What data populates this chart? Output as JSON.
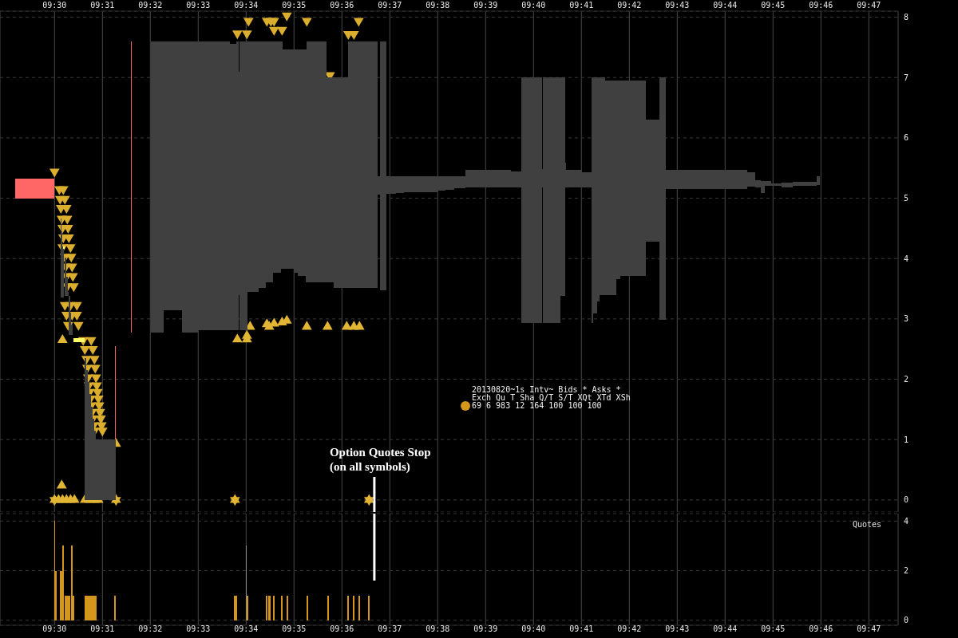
{
  "chart_data": [
    {
      "type": "bar",
      "xlim": [
        9.48103,
        9.79353
      ],
      "xticks": [
        {
          "value": 9.5,
          "label": "09:30"
        },
        {
          "value": 9.51667,
          "label": "09:31"
        },
        {
          "value": 9.53333,
          "label": "09:32"
        },
        {
          "value": 9.55,
          "label": "09:33"
        },
        {
          "value": 9.56667,
          "label": "09:34"
        },
        {
          "value": 9.58333,
          "label": "09:35"
        },
        {
          "value": 9.6,
          "label": "09:36"
        },
        {
          "value": 9.61667,
          "label": "09:37"
        },
        {
          "value": 9.63333,
          "label": "09:38"
        },
        {
          "value": 9.65,
          "label": "09:39"
        },
        {
          "value": 9.66667,
          "label": "09:40"
        },
        {
          "value": 9.68333,
          "label": "09:41"
        },
        {
          "value": 9.7,
          "label": "09:42"
        },
        {
          "value": 9.71667,
          "label": "09:43"
        },
        {
          "value": 9.73333,
          "label": "09:44"
        },
        {
          "value": 9.75,
          "label": "09:45"
        },
        {
          "value": 9.76667,
          "label": "09:46"
        },
        {
          "value": 9.78333,
          "label": "09:47"
        }
      ],
      "ylim": [
        -0.2,
        8.1
      ],
      "yticks": [
        0,
        1,
        2,
        3,
        4,
        5,
        6,
        7,
        8
      ],
      "grid": true,
      "series": [
        {
          "color": "#404040",
          "x": [
            9.50236,
            9.50264,
            9.50306,
            9.50333,
            9.50389,
            9.50444,
            9.50486,
            9.50528,
            9.50569,
            9.50611,
            9.50639,
            9.51083,
            9.51139,
            9.51194,
            9.5125,
            9.51306,
            9.51361,
            9.51417,
            9.51792,
            9.52139,
            9.53361,
            9.53583,
            9.54125,
            9.54722,
            9.55556,
            9.56222,
            9.56375,
            9.56431,
            9.56583,
            9.56917,
            9.57236,
            9.57486,
            9.5775,
            9.57917,
            9.58139,
            9.58403,
            9.58611,
            9.58764,
            9.59125,
            9.59597,
            9.59972,
            9.60736,
            9.61292,
            9.61444,
            9.61722,
            9.62028,
            9.6275,
            9.63472,
            9.63764,
            9.64111,
            9.65097,
            9.66069,
            9.66611,
            9.66986,
            9.67306,
            9.67694,
            9.67792,
            9.68083,
            9.68528,
            9.68722,
            9.68806,
            9.68917,
            9.69069,
            9.69361,
            9.69625,
            9.70139,
            9.70819,
            9.71167,
            9.72694,
            9.7425,
            9.74486,
            9.74653,
            9.74833,
            9.75125,
            9.755,
            9.76111,
            9.76583
          ],
          "base": [
            3.36,
            3.36,
            3.36,
            null,
            3.38,
            3.38,
            3.38,
            2.74,
            2.74,
            2.74,
            null,
            0,
            0,
            0,
            0,
            0,
            0,
            0,
            0,
            null,
            null,
            2.77,
            3.15,
            2.77,
            2.81,
            2.81,
            2.81,
            3.39,
            2.81,
            3.45,
            3.52,
            3.6,
            3.76,
            3.83,
            3.83,
            3.76,
            3.71,
            3.6,
            3.6,
            3.6,
            3.51,
            3.51,
            5.06,
            3.47,
            5.07,
            5.09,
            5.1,
            5.12,
            5.14,
            5.17,
            5.18,
            5.18,
            2.93,
            5.18,
            2.93,
            3.38,
            5.18,
            5.18,
            5.18,
            2.93,
            3.09,
            3.29,
            3.4,
            3.4,
            3.66,
            3.71,
            4.28,
            2.98,
            5.15,
            5.19,
            5.18,
            5.09,
            5.2,
            5.2,
            5.18,
            5.2,
            5.22
          ],
          "values": [
            1.31,
            1.09,
            0.84,
            null,
            0.64,
            0.32,
            0.07,
            0.64,
            0.36,
            0.16,
            null,
            2.35,
            2.15,
            1.95,
            1.75,
            1.55,
            1.35,
            1.15,
            1.0,
            null,
            null,
            4.83,
            4.45,
            4.83,
            4.79,
            4.75,
            4.79,
            3.71,
            4.79,
            4.15,
            4.08,
            4.0,
            3.84,
            3.77,
            3.64,
            3.71,
            3.76,
            3.87,
            4.0,
            3.4,
            3.49,
            4.09,
            0.31,
            4.13,
            0.29,
            0.27,
            0.26,
            0.24,
            0.22,
            0.19,
            0.29,
            0.26,
            4.07,
            0.3,
            4.07,
            3.62,
            0.41,
            0.29,
            0.25,
            4.07,
            3.91,
            3.71,
            3.6,
            3.55,
            3.29,
            3.24,
            2.02,
            4.02,
            0.32,
            0.24,
            0.12,
            0.2,
            0.08,
            0.05,
            0.08,
            0.07,
            0.15
          ]
        },
        {
          "color": "#ff6666",
          "x": [
            9.49319,
            9.5,
            9.52114,
            9.52128,
            9.52656,
            9.52669
          ],
          "base": [
            5.0,
            null,
            1.0,
            null,
            null,
            2.77
          ],
          "values": [
            0.33,
            null,
            1.55,
            null,
            null,
            4.83
          ]
        },
        {
          "color": "#ffff66",
          "x": [
            9.50333,
            9.50361,
            9.50667,
            9.50861
          ],
          "base": [
            4.16,
            null,
            null,
            2.62
          ],
          "values": [
            0.04,
            null,
            null,
            0.06
          ]
        },
        {
          "type": "scatter",
          "color": "#dcae2d",
          "marker": "triangle",
          "x": [
            9.5,
            9.5,
            9.50167,
            9.50306,
            9.50194,
            9.50361,
            9.50222,
            9.50417,
            9.5025,
            9.50444,
            9.50278,
            9.50472,
            9.50306,
            9.505,
            9.50278,
            9.50556,
            9.50361,
            9.50583,
            9.50389,
            9.50611,
            9.50417,
            9.50639,
            9.50444,
            9.50667,
            9.50361,
            9.50556,
            9.50778,
            9.50417,
            9.50611,
            9.50778,
            9.50472,
            9.50833,
            9.51,
            9.51278,
            9.51056,
            9.51333,
            9.51111,
            9.51389,
            9.51139,
            9.51417,
            9.51167,
            9.51444,
            9.51194,
            9.51472,
            9.51222,
            9.515,
            9.5125,
            9.51528,
            9.51278,
            9.51556,
            9.51306,
            9.51583,
            9.51333,
            9.51611,
            9.51361,
            9.51639,
            9.51389,
            9.51667,
            9.52139,
            9.56278,
            9.60944,
            9.56361,
            9.56694,
            9.5675,
            9.57389,
            9.57528,
            9.57639,
            9.57639,
            9.57917,
            9.58083,
            9.58778,
            9.59583,
            9.60222,
            9.60417,
            9.60583
          ],
          "values": [
            5.44,
            0,
            5.15,
            5.15,
            4.99,
            4.99,
            4.84,
            4.84,
            4.66,
            4.66,
            4.51,
            4.51,
            4.35,
            4.35,
            4.19,
            4.19,
            4.03,
            4.03,
            3.87,
            3.87,
            3.71,
            3.71,
            3.54,
            3.54,
            3.23,
            3.23,
            3.23,
            3.07,
            3.07,
            3.07,
            2.9,
            2.9,
            2.65,
            2.65,
            2.5,
            2.5,
            2.34,
            2.34,
            2.19,
            2.19,
            2.03,
            2.03,
            1.9,
            1.9,
            1.79,
            1.79,
            1.68,
            1.68,
            1.57,
            1.57,
            1.46,
            1.46,
            1.35,
            1.35,
            1.24,
            1.24,
            1.15,
            1.15,
            0,
            0,
            0,
            7.73,
            7.73,
            7.94,
            7.94,
            7.94,
            7.94,
            7.79,
            7.79,
            8.03,
            7.94,
            7.04,
            7.72,
            7.72,
            7.94
          ]
        },
        {
          "type": "scatter",
          "color": "#e2b634",
          "marker": "triangle",
          "x": [
            9.5,
            9.50139,
            9.50278,
            9.50417,
            9.50556,
            9.50694,
            9.51056,
            9.51222,
            9.51389,
            9.51528,
            9.52139,
            9.56278,
            9.60944,
            9.5025,
            9.50278,
            9.52139,
            9.56361,
            9.56694,
            9.56694,
            9.56806,
            9.57389,
            9.57472,
            9.57639,
            9.57917,
            9.58083,
            9.58778,
            9.595,
            9.60167,
            9.60417,
            9.60611
          ],
          "values": [
            0,
            0,
            0,
            0,
            0,
            0,
            0,
            0,
            0,
            0,
            0,
            0,
            0,
            0.24,
            2.65,
            0.93,
            2.66,
            2.66,
            2.72,
            2.87,
            2.91,
            2.87,
            2.92,
            2.94,
            2.97,
            2.87,
            2.87,
            2.87,
            2.87,
            2.87
          ]
        }
      ],
      "ref_lines": [
        {
          "axis": "x",
          "value": 9.61128,
          "label": "Option Quotes Stop\n(on all symbols)",
          "color": "#ffffff"
        }
      ],
      "annotations": [
        "20130820~1s Intv~ Bids * Asks *",
        "Exch Qu T Sha Q/T S/T XQt XTd XSh",
        "69 6 983 12 164 100 100 100"
      ]
    },
    {
      "type": "bar",
      "title": "Quotes",
      "xlim": [
        9.48103,
        9.79353
      ],
      "xticks": [
        {
          "value": 9.5,
          "label": "09:30"
        },
        {
          "value": 9.51667,
          "label": "09:31"
        },
        {
          "value": 9.53333,
          "label": "09:32"
        },
        {
          "value": 9.55,
          "label": "09:33"
        },
        {
          "value": 9.56667,
          "label": "09:34"
        },
        {
          "value": 9.58333,
          "label": "09:35"
        },
        {
          "value": 9.6,
          "label": "09:36"
        },
        {
          "value": 9.61667,
          "label": "09:37"
        },
        {
          "value": 9.63333,
          "label": "09:38"
        },
        {
          "value": 9.65,
          "label": "09:39"
        },
        {
          "value": 9.66667,
          "label": "09:40"
        },
        {
          "value": 9.68333,
          "label": "09:41"
        },
        {
          "value": 9.7,
          "label": "09:42"
        },
        {
          "value": 9.71667,
          "label": "09:43"
        },
        {
          "value": 9.73333,
          "label": "09:44"
        },
        {
          "value": 9.75,
          "label": "09:45"
        },
        {
          "value": 9.76667,
          "label": "09:46"
        },
        {
          "value": 9.78333,
          "label": "09:47"
        }
      ],
      "ylim": [
        -0.2,
        4.3
      ],
      "yticks": [
        0,
        2,
        4
      ],
      "grid": true,
      "x": [
        9.5,
        9.50042,
        9.50069,
        9.50222,
        9.50292,
        9.50319,
        9.50444,
        9.50542,
        9.50611,
        9.50625,
        9.50667,
        9.50681,
        9.5125,
        9.51458,
        9.52111,
        9.52125,
        9.56278,
        9.56292,
        9.56333,
        9.56347,
        9.56667,
        9.56708,
        9.56736,
        9.57389,
        9.57403,
        9.57472,
        9.57514,
        9.57639,
        9.57653,
        9.57917,
        9.57931,
        9.58111,
        9.58125,
        9.58806,
        9.58819,
        9.59528,
        9.59542,
        9.60222,
        9.60236,
        9.60417,
        9.60431,
        9.60611,
        9.60625,
        9.60931,
        9.60944
      ],
      "values": [
        4,
        2,
        null,
        2,
        3,
        null,
        1,
        null,
        3,
        null,
        1,
        null,
        1,
        null,
        1,
        null,
        1,
        null,
        1,
        null,
        3,
        1,
        null,
        1,
        null,
        1,
        null,
        1,
        null,
        1,
        null,
        1,
        null,
        1,
        null,
        1,
        null,
        1,
        null,
        1,
        null,
        1,
        null,
        null,
        1
      ],
      "colors": [
        "#d4961b",
        "#d4961b",
        null,
        "#d4961b",
        "#d4961b",
        null,
        "#d4961b",
        null,
        "#d4961b",
        null,
        "#d4961b",
        null,
        "#d4961b",
        null,
        "#d4961b",
        null,
        "#d4961b",
        null,
        "#d4961b",
        null,
        "#888888",
        "#d4961b",
        null,
        "#d4961b",
        null,
        "#d4961b",
        null,
        "#d4961b",
        null,
        "#d4961b",
        null,
        "#d4961b",
        null,
        "#d4961b",
        null,
        "#d4961b",
        null,
        "#d4961b",
        null,
        "#d4961b",
        null,
        "#d4961b",
        null,
        null,
        "#d4961b"
      ],
      "ref_lines": [
        {
          "axis": "x",
          "value": 9.61128,
          "color": "#ffffff"
        }
      ]
    }
  ]
}
